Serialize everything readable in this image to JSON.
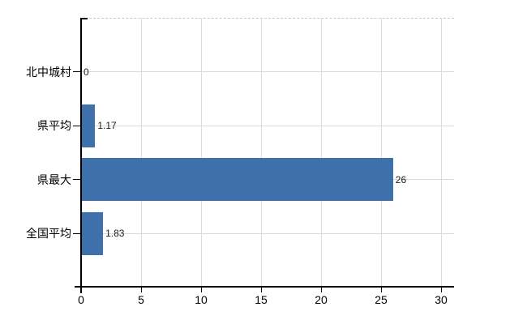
{
  "chart_data": {
    "type": "bar",
    "orientation": "horizontal",
    "title": "",
    "categories": [
      "北中城村",
      "県平均",
      "県最大",
      "全国平均"
    ],
    "values": [
      0,
      1.17,
      26,
      1.83
    ],
    "value_labels": [
      "0",
      "1.17",
      "26",
      "1.83"
    ],
    "x_ticks": [
      0,
      5,
      10,
      15,
      20,
      25,
      30
    ],
    "xlim": [
      0,
      31
    ],
    "ylim_bands": 5,
    "grid": "on",
    "legend": "none",
    "colors": {
      "bar": "#3e70ac",
      "vertical_grid": "#dcdcdc",
      "horizontal_grid": "#d7ddd3",
      "top_border": "#c6cac6",
      "axis": "#000000",
      "value_text": "#1c1c1c",
      "tick_text": "#000000"
    }
  }
}
